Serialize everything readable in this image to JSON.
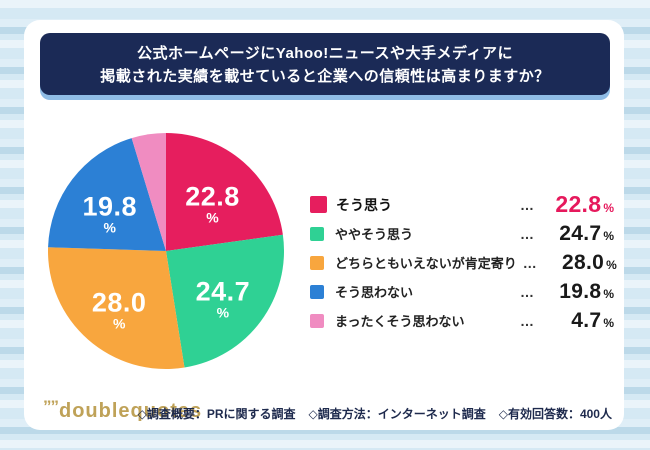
{
  "title": {
    "line1": "公式ホームページにYahoo!ニュースや大手メディアに",
    "line2": "掲載された実績を載せていると企業への信頼性は高まりますか？"
  },
  "chart_data": {
    "type": "pie",
    "title": "公式ホームページにYahoo!ニュースや大手メディアに掲載された実績を載せていると企業への信頼性は高まりますか？",
    "categories": [
      "そう思う",
      "ややそう思う",
      "どちらともいえないが肯定寄り",
      "そう思わない",
      "まったくそう思わない"
    ],
    "values": [
      22.8,
      24.7,
      28.0,
      19.8,
      4.7
    ],
    "unit": "%",
    "colors": [
      "#e61e5e",
      "#2fd194",
      "#f8a63e",
      "#2c80d5",
      "#f08cc1"
    ],
    "start_angle": "12-oclock",
    "direction": "clockwise",
    "legend_position": "right",
    "highlight_index": 0,
    "dots_separator": "…"
  },
  "footer": {
    "logo_quotes": "””",
    "logo_text": "doublequotes",
    "survey_items": [
      "◇調査概要：PRに関する調査",
      "◇調査方法：インターネット調査",
      "◇有効回答数：400人"
    ]
  },
  "colors": {
    "accent": "#e6195c",
    "banner_bg": "#1b2a56",
    "banner_shadow": "#8fbce5",
    "card_bg": "#ffffff",
    "logo_gold": "#bfa258"
  }
}
